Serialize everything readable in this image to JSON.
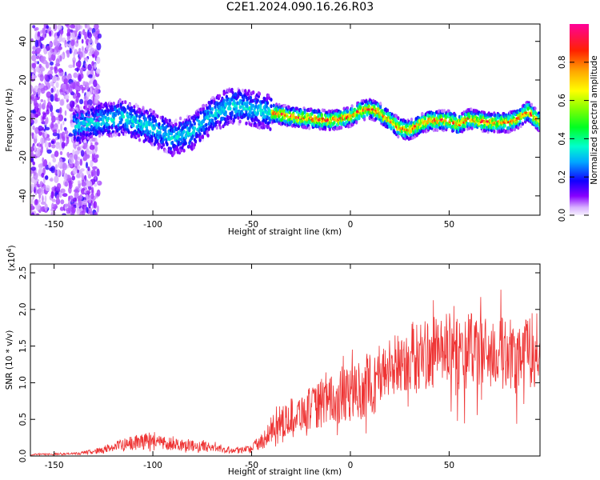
{
  "page_title": "C2E1.2024.090.16.26.R03",
  "chart_data": [
    {
      "type": "heatmap",
      "title": "C2E1.2024.090.16.26.R03",
      "xlabel": "Height of straight line (km)",
      "ylabel": "Frequency (Hz)",
      "xlim": [
        -162,
        96
      ],
      "ylim": [
        -50,
        49
      ],
      "xticks": [
        -150,
        -100,
        -50,
        0,
        50
      ],
      "yticks": [
        -40,
        -20,
        0,
        20,
        40
      ],
      "colorbar": {
        "label": "Normalized spectral amplitude",
        "range": [
          0.0,
          1.0
        ],
        "ticks": [
          0.0,
          0.2,
          0.4,
          0.6,
          0.8
        ]
      },
      "ridge": {
        "description_points_x": [
          -140,
          -125,
          -115,
          -100,
          -90,
          -80,
          -70,
          -60,
          -50,
          -40,
          -30,
          -20,
          -10,
          0,
          5,
          10,
          15,
          20,
          25,
          30,
          35,
          40,
          50,
          55,
          60,
          70,
          80,
          85,
          90,
          96
        ],
        "frequency_y": [
          -4,
          -1,
          1,
          -5,
          -10,
          -7,
          2,
          7,
          5,
          3,
          1,
          0,
          -1,
          1,
          4,
          5,
          3,
          -1,
          -5,
          -6,
          -3,
          -1,
          -1,
          -3,
          0,
          -2,
          -2,
          0,
          4,
          -2
        ]
      }
    },
    {
      "type": "line",
      "xlabel": "Height of straight line (km)",
      "ylabel": "SNR (10 * v/v)",
      "y_multiplier": "(x10",
      "y_multiplier_exp": "4",
      "y_multiplier_close": ")",
      "xlim": [
        -162,
        96
      ],
      "ylim": [
        0,
        2.62
      ],
      "xticks": [
        -150,
        -100,
        -50,
        0,
        50
      ],
      "yticks": [
        0.0,
        0.5,
        1.0,
        1.5,
        2.0,
        2.5
      ],
      "ytick_labels": [
        "0.0",
        "0.5",
        "1.0",
        "1.5",
        "2.0",
        "2.5"
      ],
      "color": "#ee3333",
      "series": [
        {
          "x": [
            -162,
            -140,
            -130,
            -120,
            -110,
            -100,
            -90,
            -80,
            -70,
            -60,
            -50,
            -45,
            -40,
            -35,
            -30,
            -20,
            -10,
            0,
            10,
            20,
            30,
            40,
            50,
            60,
            70,
            80,
            90,
            96
          ],
          "values": [
            0.02,
            0.03,
            0.06,
            0.12,
            0.18,
            0.2,
            0.17,
            0.14,
            0.12,
            0.08,
            0.1,
            0.2,
            0.35,
            0.45,
            0.55,
            0.65,
            0.75,
            0.85,
            0.95,
            1.2,
            1.35,
            1.4,
            1.45,
            1.45,
            1.4,
            1.4,
            1.45,
            1.45
          ]
        }
      ]
    }
  ]
}
